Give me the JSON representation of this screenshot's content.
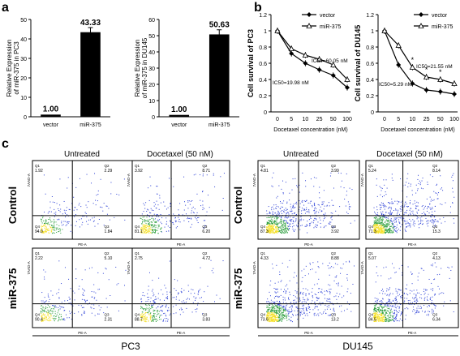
{
  "panel_labels": {
    "a": "a",
    "b": "b",
    "c": "c"
  },
  "chart_data": [
    {
      "type": "bar",
      "panel": "a",
      "categories": [
        "vector",
        "miR-375"
      ],
      "values": [
        1.0,
        43.33
      ],
      "value_labels": [
        "1.00",
        "43.33"
      ],
      "ylabel": "Relative Expression of miR-375 in PC3",
      "ylim": [
        0,
        50
      ],
      "yticks": [
        "0",
        "10",
        "20",
        "30",
        "40",
        "50"
      ]
    },
    {
      "type": "bar",
      "panel": "a",
      "categories": [
        "vector",
        "miR-375"
      ],
      "values": [
        1.0,
        50.63
      ],
      "value_labels": [
        "1.00",
        "50.63"
      ],
      "ylabel": "Relative Expression of miR-375 in DU145",
      "ylim": [
        0,
        60
      ],
      "yticks": [
        "0",
        "10",
        "20",
        "30",
        "40",
        "50",
        "60"
      ]
    },
    {
      "type": "line",
      "panel": "b",
      "x": [
        0,
        5,
        10,
        25,
        50,
        100
      ],
      "xticks": [
        "0",
        "5",
        "10",
        "25",
        "50",
        "100"
      ],
      "xlabel": "Docetaxel concentration (nM)",
      "ylabel": "Cell survival of PC3",
      "ylim": [
        0,
        1.2
      ],
      "yticks": [
        "0",
        "0.2",
        "0.4",
        "0.6",
        "0.8",
        "1",
        "1.2"
      ],
      "series": [
        {
          "name": "vector",
          "values": [
            1.0,
            0.72,
            0.6,
            0.52,
            0.45,
            0.3
          ]
        },
        {
          "name": "miR-375",
          "values": [
            1.0,
            0.78,
            0.7,
            0.65,
            0.58,
            0.4
          ]
        }
      ],
      "annotations": [
        "IC50=60.05 nM",
        "IC50=19.98 nM"
      ]
    },
    {
      "type": "line",
      "panel": "b",
      "x": [
        0,
        5,
        10,
        25,
        50,
        100
      ],
      "xticks": [
        "0",
        "5",
        "10",
        "25",
        "50",
        "100"
      ],
      "xlabel": "Docetaxel concentration (nM)",
      "ylabel": "Cell survival of DU145",
      "ylim": [
        0,
        1.2
      ],
      "yticks": [
        "0",
        "0.2",
        "0.4",
        "0.6",
        "0.8",
        "1",
        "1.2"
      ],
      "series": [
        {
          "name": "vector",
          "values": [
            1.0,
            0.58,
            0.35,
            0.27,
            0.25,
            0.22
          ]
        },
        {
          "name": "miR-375",
          "values": [
            1.0,
            0.82,
            0.55,
            0.43,
            0.4,
            0.35
          ]
        }
      ],
      "annotations": [
        "IC50=21.55 nM",
        "IC50=5.29 nM"
      ],
      "significance": [
        "*",
        "*",
        "*"
      ]
    }
  ],
  "flow": {
    "col_titles": [
      "Untreated",
      "Docetaxel  (50 nM)",
      "Untreated",
      "Docetaxel  (50 nM)"
    ],
    "row_labels": [
      "Control",
      "miR-375"
    ],
    "cell_lines": [
      "PC3",
      "DU145"
    ],
    "xaxis": "PE-A",
    "yaxis": "7AAD-A",
    "quadrant_names": [
      "Q1",
      "Q2",
      "Q3",
      "Q4"
    ],
    "plots": [
      {
        "q1": "1.92",
        "q2": "2.29",
        "q3": "1.84",
        "q4": "94.0"
      },
      {
        "q1": "3.92",
        "q2": "8.71",
        "q3": "6.20",
        "q4": "81.1"
      },
      {
        "q1": "4.81",
        "q2": "3.99",
        "q3": "3.92",
        "q4": "87.3"
      },
      {
        "q1": "5.24",
        "q2": "8.14",
        "q3": "15.3",
        "q4": "71.3"
      },
      {
        "q1": "2.22",
        "q2": "5.10",
        "q3": "2.31",
        "q4": "90.4"
      },
      {
        "q1": "2.75",
        "q2": "4.72",
        "q3": "3.83",
        "q4": "88.7"
      },
      {
        "q1": "4.33",
        "q2": "8.88",
        "q3": "13.2",
        "q4": "73.6"
      },
      {
        "q1": "5.07",
        "q2": "4.13",
        "q3": "6.34",
        "q4": "84.5"
      }
    ]
  },
  "colors": {
    "bar": "#000000",
    "scatter_low": "#2a9d3a",
    "scatter_high": "#2b3fd6",
    "scatter_mid": "#f5e02a"
  }
}
